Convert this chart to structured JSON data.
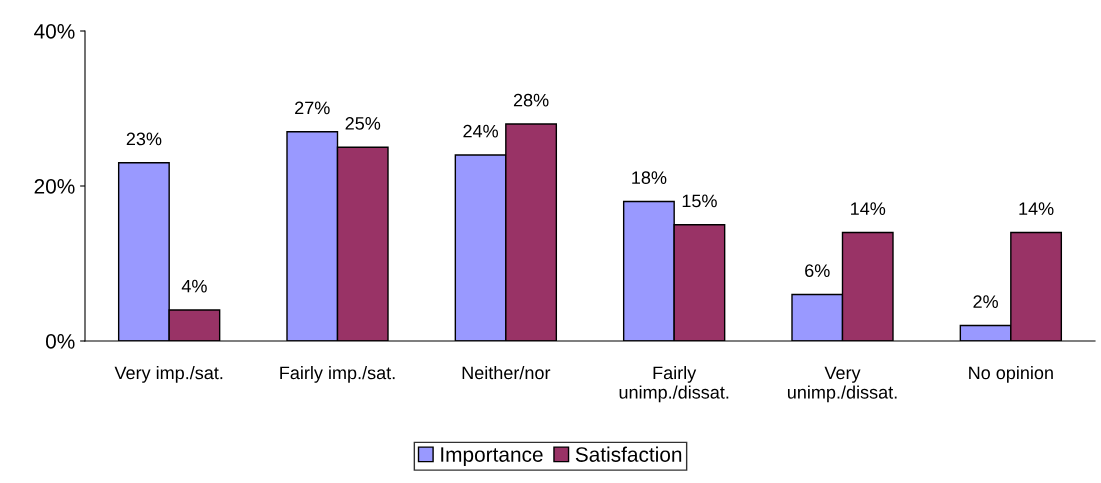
{
  "chart_data": {
    "type": "bar",
    "categories": [
      "Very imp./sat.",
      "Fairly imp./sat.",
      "Neither/nor",
      "Fairly\nunimp./dissat.",
      "Very\nunimp./dissat.",
      "No opinion"
    ],
    "series": [
      {
        "name": "Importance",
        "color": "#9999ff",
        "values": [
          23,
          27,
          24,
          18,
          6,
          2
        ],
        "value_labels": [
          "23%",
          "27%",
          "24%",
          "18%",
          "6%",
          "2%"
        ]
      },
      {
        "name": "Satisfaction",
        "color": "#993366",
        "values": [
          4,
          25,
          28,
          15,
          14,
          14
        ],
        "value_labels": [
          "4%",
          "25%",
          "28%",
          "15%",
          "14%",
          "14%"
        ]
      }
    ],
    "ylim": [
      0,
      40
    ],
    "yticks": [
      {
        "value": 0,
        "label": "0%"
      },
      {
        "value": 20,
        "label": "20%"
      },
      {
        "value": 40,
        "label": "40%"
      }
    ],
    "grid": false,
    "legend": "bottom"
  }
}
